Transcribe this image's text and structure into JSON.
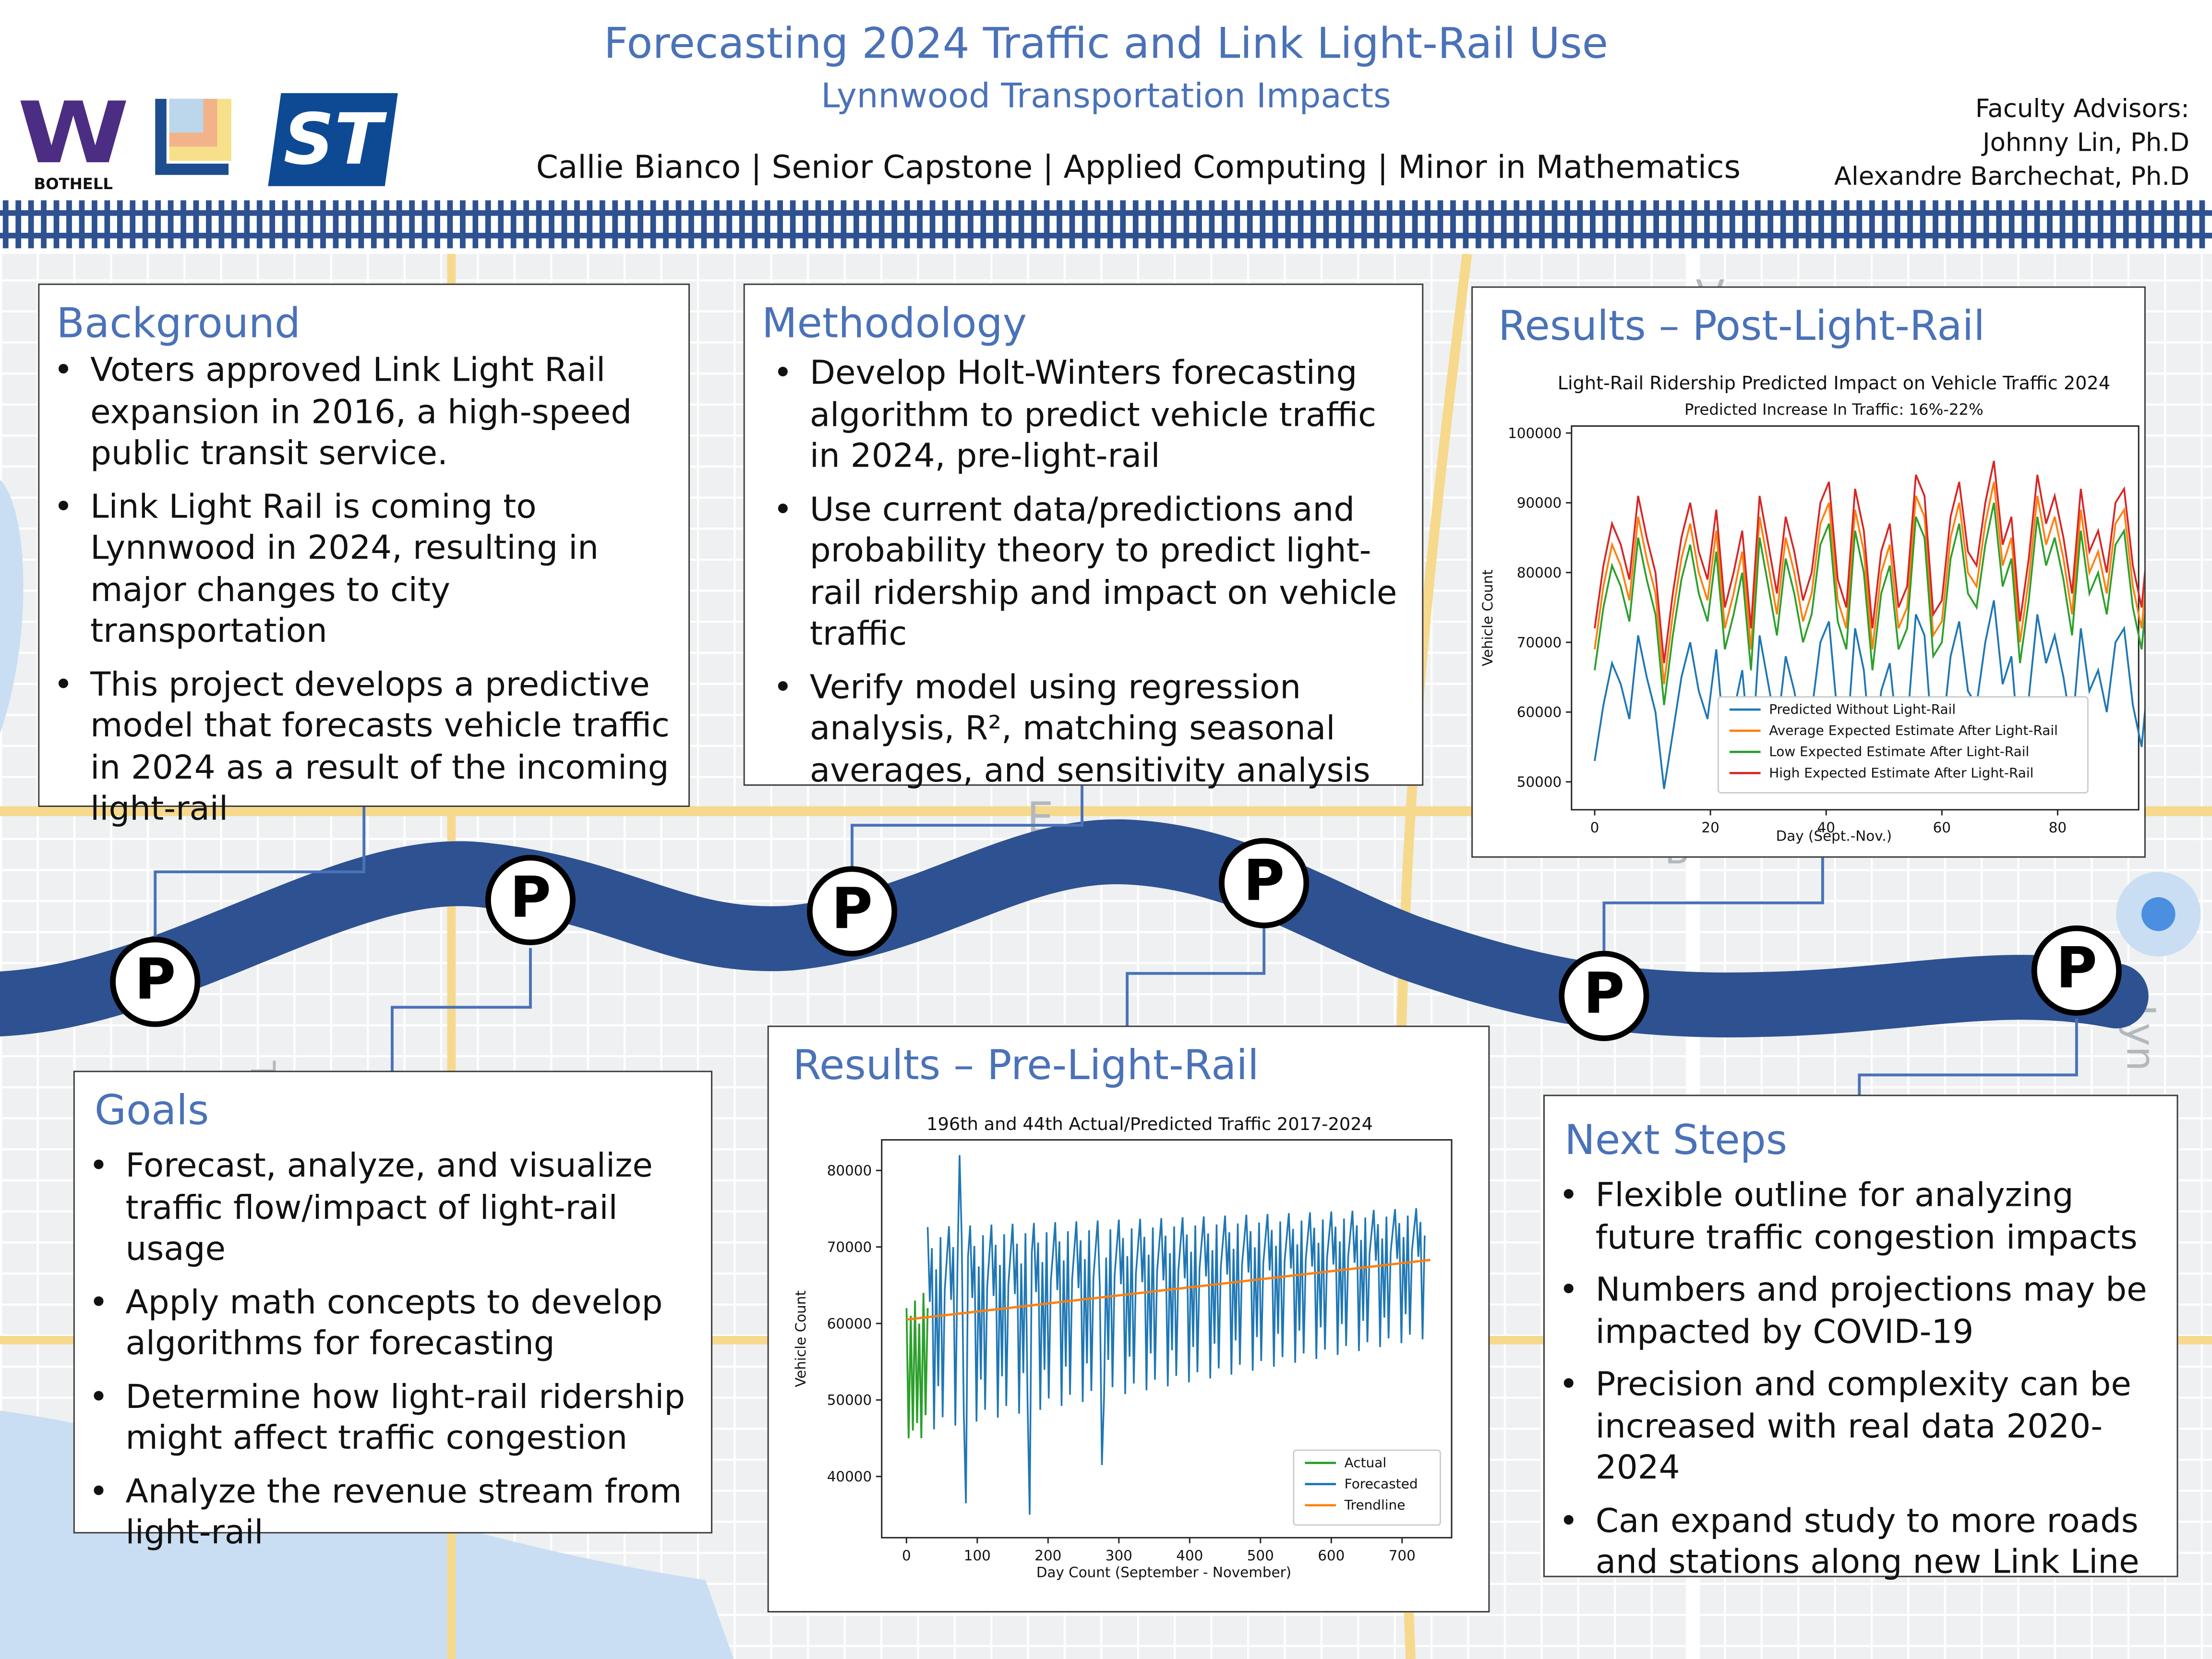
{
  "header": {
    "title": "Forecasting 2024 Traffic and Link Light-Rail Use",
    "subtitle": "Lynnwood Transportation Impacts",
    "byline": "Callie Bianco | Senior Capstone | Applied Computing | Minor in Mathematics",
    "advisors_label": "Faculty Advisors:",
    "advisors": [
      "Johnny Lin, Ph.D",
      "Alexandre Barchechat, Ph.D"
    ],
    "logos": {
      "uw_letter": "W",
      "uw_campus": "BOTHELL",
      "sound_transit_letters": "ST"
    }
  },
  "map_labels": [
    "V",
    "E",
    "TH",
    "B",
    "Lyn"
  ],
  "parking_marker_label": "P",
  "sections": {
    "background": {
      "title": "Background",
      "bullets": [
        "Voters approved Link Light Rail expansion in 2016, a high-speed public transit service.",
        "Link Light Rail is coming to Lynnwood in 2024, resulting in major changes to city transportation",
        "This project develops a predictive model that forecasts vehicle traffic in 2024 as a result of the incoming light-rail"
      ]
    },
    "methodology": {
      "title": "Methodology",
      "bullets": [
        "Develop Holt-Winters forecasting algorithm to predict vehicle traffic in 2024, pre-light-rail",
        "Use current data/predictions and probability theory to predict light-rail ridership and impact on vehicle traffic",
        "Verify model using regression analysis, R², matching seasonal averages, and sensitivity analysis"
      ]
    },
    "results_post": {
      "title": "Results – Post-Light-Rail"
    },
    "results_pre": {
      "title": "Results – Pre-Light-Rail"
    },
    "goals": {
      "title": "Goals",
      "bullets": [
        "Forecast, analyze, and visualize traffic flow/impact of light-rail usage",
        "Apply math concepts to develop algorithms for forecasting",
        "Determine how light-rail ridership might affect traffic congestion",
        "Analyze the revenue stream from light-rail"
      ]
    },
    "next_steps": {
      "title": "Next Steps",
      "bullets": [
        "Flexible outline for analyzing future traffic congestion impacts",
        "Numbers and projections may be impacted by COVID-19",
        "Precision and complexity can be increased with real data 2020-2024",
        "Can expand study to more roads and stations along new Link Line"
      ]
    }
  },
  "colors": {
    "accent": "#4a72b8",
    "road": "#2e5191",
    "uw_purple": "#4b2e83",
    "st_blue": "#0d4a93"
  },
  "chart_data": [
    {
      "type": "line",
      "title": "Light-Rail Ridership Predicted Impact on Vehicle Traffic 2024",
      "subtitle": "Predicted Increase In Traffic: 16%-22%",
      "xlabel": "Day (Sept.-Nov.)",
      "ylabel": "Vehicle Count",
      "xlim": [
        -4,
        94
      ],
      "ylim": [
        46000,
        101000
      ],
      "xticks": [
        0,
        20,
        40,
        60,
        80
      ],
      "yticks": [
        50000,
        60000,
        70000,
        80000,
        90000,
        100000
      ],
      "legend_position": "lower-right",
      "grid": false,
      "x_start": 0,
      "x_step": 1.5,
      "series": [
        {
          "name": "Predicted Without Light-Rail",
          "color": "#1f77b4",
          "values": [
            53000,
            61000,
            67000,
            64000,
            59000,
            71000,
            65000,
            60000,
            49000,
            57000,
            65000,
            70000,
            63000,
            59000,
            69000,
            55000,
            60000,
            66000,
            52000,
            71000,
            64000,
            57000,
            68000,
            63000,
            56000,
            60000,
            70000,
            73000,
            59000,
            55000,
            72000,
            66000,
            52000,
            63000,
            67000,
            55000,
            58000,
            74000,
            71000,
            54000,
            56000,
            68000,
            73000,
            63000,
            61000,
            70000,
            76000,
            64000,
            68000,
            53000,
            62000,
            74000,
            67000,
            71000,
            65000,
            57000,
            72000,
            63000,
            66000,
            60000,
            70000,
            72000,
            61000,
            55000,
            68000,
            73000,
            65000,
            60000,
            75000,
            71000,
            63000,
            56000,
            69000,
            74000,
            68000,
            62000,
            72000,
            70000,
            61000,
            57000,
            73000,
            68000,
            66000,
            58000,
            74000,
            71000,
            70000,
            64000,
            66000,
            65000,
            64000
          ]
        },
        {
          "name": "Average Expected Estimate After Light-Rail",
          "color": "#ff7f0e",
          "values": [
            69000,
            78000,
            84000,
            81000,
            76000,
            88000,
            82000,
            77000,
            64000,
            74000,
            82000,
            87000,
            80000,
            76000,
            86000,
            72000,
            77000,
            83000,
            69000,
            88000,
            81000,
            74000,
            85000,
            80000,
            73000,
            77000,
            87000,
            90000,
            76000,
            72000,
            89000,
            83000,
            69000,
            80000,
            84000,
            72000,
            75000,
            91000,
            88000,
            71000,
            73000,
            85000,
            90000,
            80000,
            78000,
            87000,
            93000,
            81000,
            85000,
            70000,
            79000,
            91000,
            84000,
            88000,
            82000,
            74000,
            89000,
            80000,
            83000,
            77000,
            87000,
            89000,
            78000,
            72000,
            85000,
            90000,
            82000,
            77000,
            92000,
            88000,
            80000,
            73000,
            86000,
            91000,
            85000,
            79000,
            89000,
            87000,
            78000,
            74000,
            90000,
            85000,
            83000,
            75000,
            91000,
            88000,
            87000,
            81000,
            83000,
            82000,
            77000
          ]
        },
        {
          "name": "Low Expected Estimate After Light-Rail",
          "color": "#2ca02c",
          "values": [
            66000,
            75000,
            81000,
            78000,
            73000,
            85000,
            79000,
            74000,
            61000,
            71000,
            79000,
            84000,
            77000,
            73000,
            83000,
            69000,
            74000,
            80000,
            66000,
            85000,
            78000,
            71000,
            82000,
            77000,
            70000,
            74000,
            84000,
            87000,
            73000,
            69000,
            86000,
            80000,
            66000,
            77000,
            81000,
            69000,
            72000,
            88000,
            85000,
            68000,
            70000,
            82000,
            87000,
            77000,
            75000,
            84000,
            90000,
            78000,
            82000,
            67000,
            76000,
            88000,
            81000,
            85000,
            79000,
            71000,
            86000,
            77000,
            80000,
            74000,
            84000,
            86000,
            75000,
            69000,
            82000,
            87000,
            79000,
            74000,
            89000,
            85000,
            77000,
            70000,
            83000,
            88000,
            82000,
            76000,
            86000,
            84000,
            75000,
            71000,
            87000,
            82000,
            80000,
            72000,
            88000,
            85000,
            84000,
            78000,
            80000,
            79000,
            74000
          ]
        },
        {
          "name": "High Expected Estimate After Light-Rail",
          "color": "#d62728",
          "values": [
            72000,
            81000,
            87000,
            84000,
            79000,
            91000,
            85000,
            80000,
            67000,
            77000,
            85000,
            90000,
            83000,
            79000,
            89000,
            75000,
            80000,
            86000,
            72000,
            91000,
            84000,
            77000,
            88000,
            83000,
            76000,
            80000,
            90000,
            93000,
            79000,
            75000,
            92000,
            86000,
            72000,
            83000,
            87000,
            75000,
            78000,
            94000,
            91000,
            74000,
            76000,
            88000,
            93000,
            83000,
            81000,
            90000,
            96000,
            84000,
            88000,
            73000,
            82000,
            94000,
            87000,
            91000,
            85000,
            77000,
            92000,
            83000,
            86000,
            80000,
            90000,
            92000,
            81000,
            75000,
            88000,
            93000,
            85000,
            80000,
            95000,
            91000,
            83000,
            76000,
            89000,
            94000,
            88000,
            82000,
            92000,
            90000,
            81000,
            77000,
            93000,
            88000,
            86000,
            78000,
            94000,
            91000,
            90000,
            84000,
            86000,
            85000,
            80000
          ]
        }
      ]
    },
    {
      "type": "line",
      "title": "196th and 44th Actual/Predicted Traffic 2017-2024",
      "xlabel": "Day Count (September - November)",
      "ylabel": "Vehicle Count",
      "xlim": [
        -35,
        770
      ],
      "ylim": [
        32000,
        84000
      ],
      "xticks": [
        0,
        100,
        200,
        300,
        400,
        500,
        600,
        700
      ],
      "yticks": [
        40000,
        50000,
        60000,
        70000,
        80000
      ],
      "legend_position": "lower-right",
      "grid": false,
      "series": [
        {
          "name": "Actual",
          "color": "#2ca02c",
          "x": [
            0,
            3,
            6,
            9,
            12,
            15,
            18,
            21,
            24,
            27,
            30
          ],
          "y": [
            62000,
            45000,
            61000,
            46000,
            63000,
            47000,
            60000,
            45000,
            64000,
            48000,
            62000
          ]
        },
        {
          "name": "Forecasted",
          "color": "#1f77b4",
          "x_start": 30,
          "x_step": 3,
          "base_start": 60000,
          "base_end": 67000,
          "amplitude_low": 14000,
          "amplitude_high": 9000,
          "spikes": [
            {
              "x": 75,
              "y": 82000
            },
            {
              "x": 85,
              "y": 36500
            },
            {
              "x": 175,
              "y": 35000
            },
            {
              "x": 275,
              "y": 41500
            }
          ]
        },
        {
          "name": "Trendline",
          "color": "#ff7f0e",
          "x": [
            0,
            740
          ],
          "y": [
            60500,
            68300
          ]
        }
      ]
    }
  ]
}
